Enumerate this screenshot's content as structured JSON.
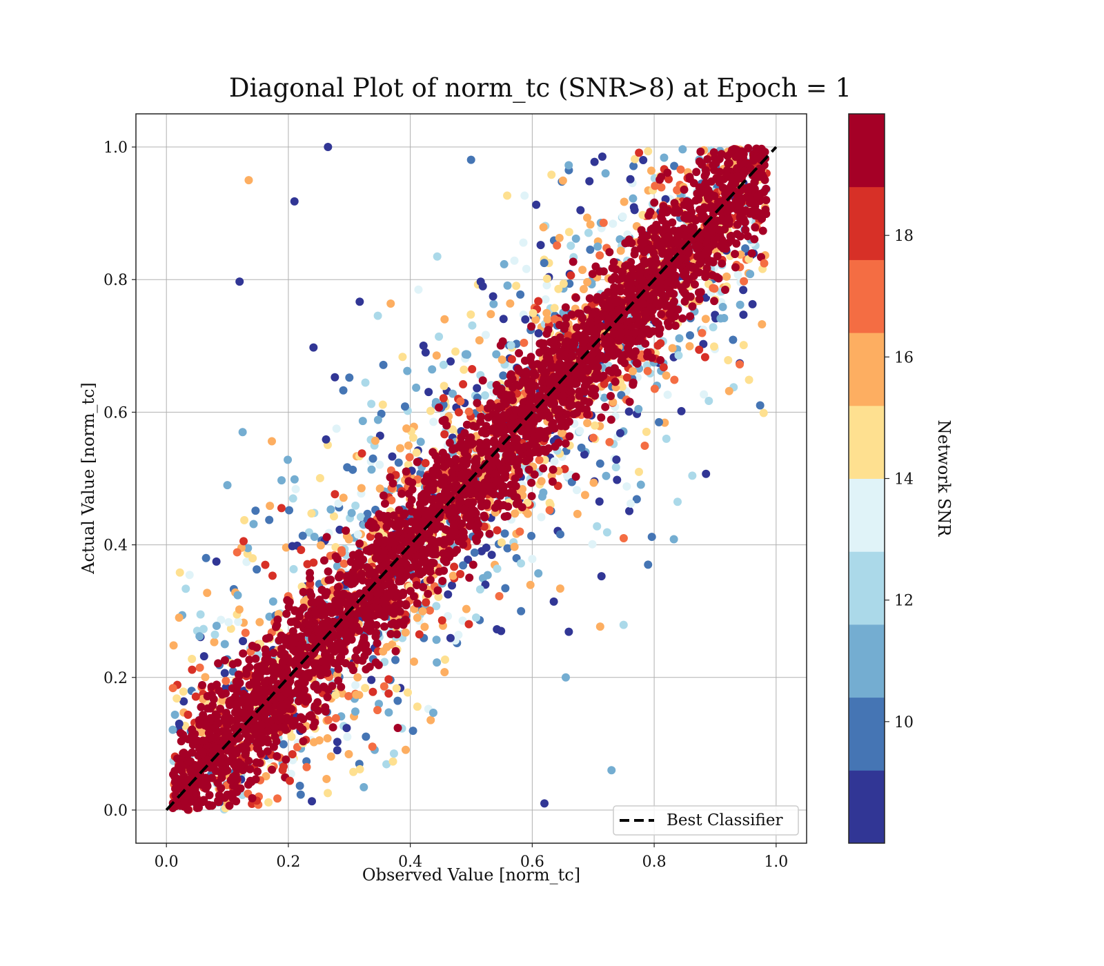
{
  "chart_data": {
    "type": "scatter",
    "title": "Diagonal Plot of norm_tc (SNR>8) at Epoch = 1",
    "xlabel": "Observed Value [norm_tc]",
    "ylabel": "Actual Value [norm_tc]",
    "xlim": [
      -0.05,
      1.05
    ],
    "ylim": [
      -0.05,
      1.05
    ],
    "xticks": [
      0.0,
      0.2,
      0.4,
      0.6,
      0.8,
      1.0
    ],
    "yticks": [
      0.0,
      0.2,
      0.4,
      0.6,
      0.8,
      1.0
    ],
    "xtick_labels": [
      "0.0",
      "0.2",
      "0.4",
      "0.6",
      "0.8",
      "1.0"
    ],
    "ytick_labels": [
      "0.0",
      "0.2",
      "0.4",
      "0.6",
      "0.8",
      "1.0"
    ],
    "grid": true,
    "reference_line": {
      "label": "Best Classifier",
      "x": [
        0.0,
        1.0
      ],
      "y": [
        0.0,
        1.0
      ],
      "style": "dashed",
      "color": "#000000"
    },
    "legend_position": "lower-right",
    "colorbar": {
      "label": "Network SNR",
      "ticks": [
        10,
        12,
        14,
        16,
        18
      ],
      "tick_labels": [
        "10",
        "12",
        "14",
        "16",
        "18"
      ],
      "range": [
        8,
        20
      ],
      "colors": [
        "#313695",
        "#4575b4",
        "#74add1",
        "#abd9e9",
        "#e0f3f8",
        "#fee090",
        "#fdae61",
        "#f46d43",
        "#d73027",
        "#a50026"
      ]
    },
    "series_note": "dense cloud of ~100k points scattered around y = x, high-SNR points (dark red) concentrated within ±0.1 of the diagonal, low-SNR points spread widely",
    "sample_points": [
      [
        0.135,
        0.95,
        15.5
      ],
      [
        0.12,
        0.797,
        8.5
      ],
      [
        0.885,
        0.507,
        8.5
      ],
      [
        0.82,
        0.56,
        12.5
      ],
      [
        0.79,
        0.37,
        9.5
      ],
      [
        0.655,
        0.2,
        10.5
      ],
      [
        0.21,
        0.918,
        8.5
      ],
      [
        0.265,
        1.0,
        8.5
      ],
      [
        0.125,
        0.57,
        10.5
      ],
      [
        0.065,
        0.38,
        9.5
      ],
      [
        0.1,
        0.49,
        11.5
      ],
      [
        0.73,
        0.06,
        10.5
      ],
      [
        0.62,
        0.01,
        8.5
      ],
      [
        0.75,
        0.41,
        16.5
      ],
      [
        0.775,
        0.51,
        14.5
      ]
    ]
  }
}
